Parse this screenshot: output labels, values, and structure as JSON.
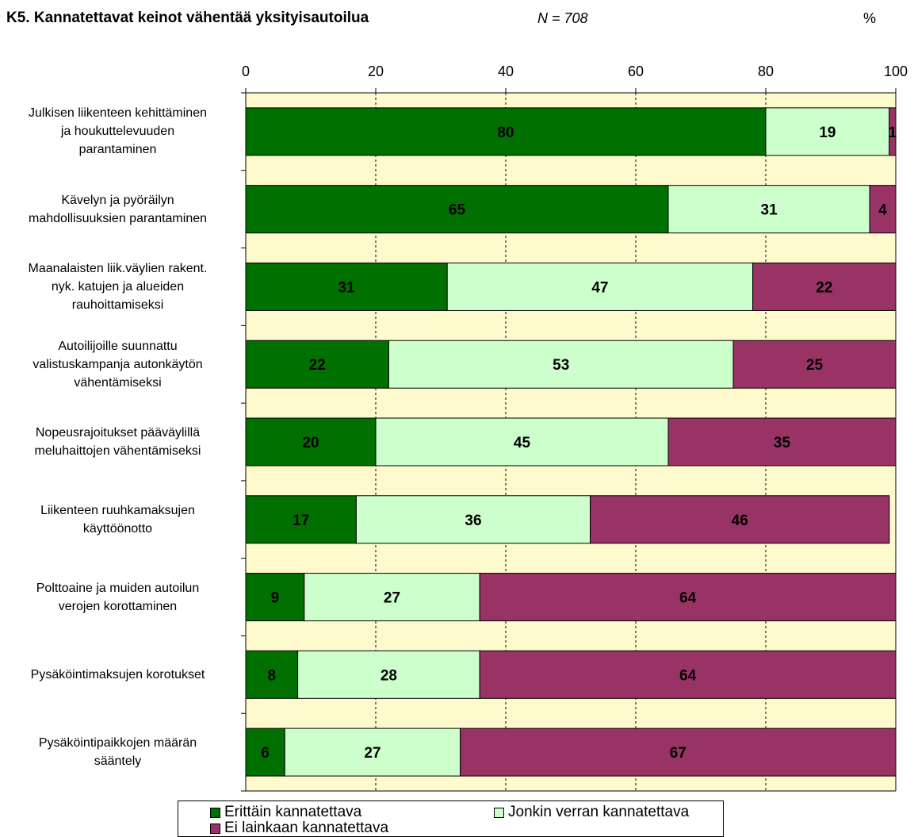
{
  "header": {
    "title": "K5. Kannatettavat keinot vähentää yksityisautoilua",
    "n_label": "N =  708",
    "unit_label": "%"
  },
  "colors": {
    "plot_background": "#fffacd",
    "series": [
      "#007000",
      "#ccffcc",
      "#993366"
    ]
  },
  "chart_data": {
    "type": "bar",
    "orientation": "horizontal",
    "stacked": true,
    "title": "K5. Kannatettavat keinot vähentää yksityisautoilua",
    "xlim": [
      0,
      100
    ],
    "x_ticks": [
      0,
      20,
      40,
      60,
      80,
      100
    ],
    "x_tick_labels": [
      "0",
      "20",
      "40",
      "60",
      "80",
      "100"
    ],
    "grid": "vertical dashed",
    "legend_position": "bottom",
    "categories": [
      "Julkisen liikenteen kehittäminen\nja houkuttelevuuden\nparantaminen",
      "Kävelyn ja pyöräilyn\nmahdollisuuksien parantaminen",
      "Maanalaisten liik.väylien rakent.\nnyk. katujen ja alueiden\nrauhoittamiseksi",
      "Autoilijoille suunnattu\nvalistuskampanja autonkäytön\nvähentämiseksi",
      "Nopeusrajoitukset pääväylillä\nmeluhaittojen vähentämiseksi",
      "Liikenteen ruuhkamaksujen\nkäyttöönotto",
      "Polttoaine ja muiden autoilun\nverojen korottaminen",
      "Pysäköintimaksujen korotukset",
      "Pysäköintipaikkojen määrän\nsääntely"
    ],
    "series": [
      {
        "name": "Erittäin kannatettava",
        "values": [
          80,
          65,
          31,
          22,
          20,
          17,
          9,
          8,
          6
        ]
      },
      {
        "name": "Jonkin verran kannatettava",
        "values": [
          19,
          31,
          47,
          53,
          45,
          36,
          27,
          28,
          27
        ]
      },
      {
        "name": "Ei lainkaan kannatettava",
        "values": [
          1,
          4,
          22,
          25,
          35,
          46,
          64,
          64,
          67
        ]
      }
    ]
  }
}
